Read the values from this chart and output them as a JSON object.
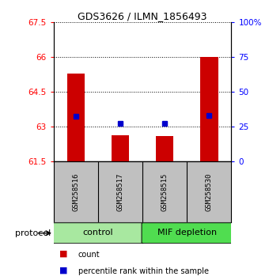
{
  "title": "GDS3626 / ILMN_1856493",
  "samples": [
    "GSM258516",
    "GSM258517",
    "GSM258515",
    "GSM258530"
  ],
  "groups": [
    "control",
    "control",
    "MIF depletion",
    "MIF depletion"
  ],
  "count_values": [
    65.3,
    62.62,
    62.58,
    66.0
  ],
  "percentile_values": [
    32,
    27,
    27,
    33
  ],
  "ylim_left": [
    61.5,
    67.5
  ],
  "yticks_left": [
    61.5,
    63.0,
    64.5,
    66.0,
    67.5
  ],
  "ylim_right": [
    0,
    100
  ],
  "yticks_right": [
    0,
    25,
    50,
    75,
    100
  ],
  "yticklabels_right": [
    "0",
    "25",
    "50",
    "75",
    "100%"
  ],
  "bar_color": "#CC0000",
  "dot_color": "#0000CC",
  "bar_width": 0.4,
  "legend_count_label": "count",
  "legend_percentile_label": "percentile rank within the sample",
  "background_plot": "#FFFFFF",
  "background_sample": "#C0C0C0",
  "bar_bottom": 61.5,
  "ctrl_color": "#A8E8A0",
  "mif_color": "#50DD50"
}
